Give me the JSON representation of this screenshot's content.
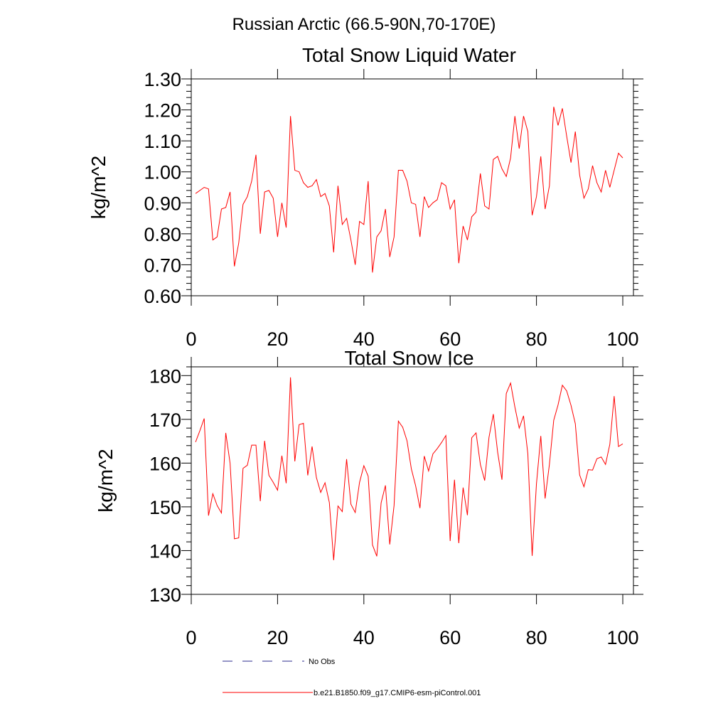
{
  "figure_title": "Russian Arctic (66.5-90N,70-170E)",
  "legend": {
    "items": [
      {
        "label": "No Obs",
        "color": "#2b2b8f",
        "style": "dashed"
      },
      {
        "label": "b.e21.B1850.f09_g17.CMIP6-esm-piControl.001",
        "color": "#ff0000",
        "style": "solid"
      }
    ]
  },
  "chart_data": [
    {
      "type": "line",
      "title": "Total Snow Liquid Water",
      "xlabel": "",
      "ylabel": "kg/m^2",
      "xlim": [
        0,
        100
      ],
      "ylim": [
        0.6,
        1.3
      ],
      "xticks": [
        0,
        20,
        40,
        60,
        80,
        100
      ],
      "xtick_labels": [
        "0",
        "20",
        "40",
        "60",
        "80",
        "100"
      ],
      "yticks": [
        0.6,
        0.7,
        0.8,
        0.9,
        1.0,
        1.1,
        1.2,
        1.3
      ],
      "ytick_labels": [
        "0.60",
        "0.70",
        "0.80",
        "0.90",
        "1.00",
        "1.10",
        "1.20",
        "1.30"
      ],
      "series": [
        {
          "name": "b.e21.B1850.f09_g17.CMIP6-esm-piControl.001",
          "color": "#ff0000",
          "x": [
            1,
            2,
            3,
            4,
            5,
            6,
            7,
            8,
            9,
            10,
            11,
            12,
            13,
            14,
            15,
            16,
            17,
            18,
            19,
            20,
            21,
            22,
            23,
            24,
            25,
            26,
            27,
            28,
            29,
            30,
            31,
            32,
            33,
            34,
            35,
            36,
            37,
            38,
            39,
            40,
            41,
            42,
            43,
            44,
            45,
            46,
            47,
            48,
            49,
            50,
            51,
            52,
            53,
            54,
            55,
            56,
            57,
            58,
            59,
            60,
            61,
            62,
            63,
            64,
            65,
            66,
            67,
            68,
            69,
            70,
            71,
            72,
            73,
            74,
            75,
            76,
            77,
            78,
            79,
            80,
            81,
            82,
            83,
            84,
            85,
            86,
            87,
            88,
            89,
            90,
            91,
            92,
            93,
            94,
            95,
            96,
            97,
            98,
            99,
            100
          ],
          "values": [
            0.93,
            0.94,
            0.95,
            0.945,
            0.78,
            0.79,
            0.88,
            0.885,
            0.935,
            0.695,
            0.77,
            0.895,
            0.92,
            0.97,
            1.055,
            0.8,
            0.935,
            0.94,
            0.915,
            0.79,
            0.9,
            0.82,
            1.18,
            1.005,
            1.0,
            0.965,
            0.95,
            0.955,
            0.975,
            0.92,
            0.93,
            0.89,
            0.74,
            0.955,
            0.83,
            0.85,
            0.78,
            0.7,
            0.84,
            0.83,
            0.97,
            0.675,
            0.79,
            0.81,
            0.88,
            0.725,
            0.79,
            1.005,
            1.005,
            0.97,
            0.9,
            0.895,
            0.79,
            0.92,
            0.885,
            0.9,
            0.91,
            0.965,
            0.955,
            0.88,
            0.91,
            0.705,
            0.825,
            0.78,
            0.855,
            0.87,
            0.995,
            0.89,
            0.88,
            1.04,
            1.05,
            1.01,
            0.985,
            1.045,
            1.18,
            1.075,
            1.18,
            1.13,
            0.86,
            0.92,
            1.05,
            0.88,
            0.955,
            1.21,
            1.15,
            1.205,
            1.115,
            1.03,
            1.13,
            0.99,
            0.915,
            0.945,
            1.02,
            0.965,
            0.935,
            1.005,
            0.95,
            1.005,
            1.06,
            1.045
          ]
        }
      ]
    },
    {
      "type": "line",
      "title": "Total Snow Ice",
      "xlabel": "",
      "ylabel": "kg/m^2",
      "xlim": [
        0,
        100
      ],
      "ylim": [
        130,
        182
      ],
      "xticks": [
        0,
        20,
        40,
        60,
        80,
        100
      ],
      "xtick_labels": [
        "0",
        "20",
        "40",
        "60",
        "80",
        "100"
      ],
      "yticks": [
        130,
        140,
        150,
        160,
        170,
        180
      ],
      "ytick_labels": [
        "130",
        "140",
        "150",
        "160",
        "170",
        "180"
      ],
      "series": [
        {
          "name": "b.e21.B1850.f09_g17.CMIP6-esm-piControl.001",
          "color": "#ff0000",
          "x": [
            1,
            2,
            3,
            4,
            5,
            6,
            7,
            8,
            9,
            10,
            11,
            12,
            13,
            14,
            15,
            16,
            17,
            18,
            19,
            20,
            21,
            22,
            23,
            24,
            25,
            26,
            27,
            28,
            29,
            30,
            31,
            32,
            33,
            34,
            35,
            36,
            37,
            38,
            39,
            40,
            41,
            42,
            43,
            44,
            45,
            46,
            47,
            48,
            49,
            50,
            51,
            52,
            53,
            54,
            55,
            56,
            57,
            58,
            59,
            60,
            61,
            62,
            63,
            64,
            65,
            66,
            67,
            68,
            69,
            70,
            71,
            72,
            73,
            74,
            75,
            76,
            77,
            78,
            79,
            80,
            81,
            82,
            83,
            84,
            85,
            86,
            87,
            88,
            89,
            90,
            91,
            92,
            93,
            94,
            95,
            96,
            97,
            98,
            99,
            100
          ],
          "values": [
            164.8,
            167.4,
            170.2,
            148.0,
            153.0,
            150.3,
            148.6,
            166.9,
            160.0,
            142.7,
            142.9,
            158.8,
            159.5,
            164.1,
            164.1,
            151.3,
            165.1,
            157.2,
            155.6,
            153.8,
            161.7,
            155.4,
            179.6,
            160.4,
            168.8,
            169.1,
            157.2,
            163.8,
            156.7,
            153.3,
            155.5,
            151.0,
            137.8,
            150.2,
            148.9,
            160.9,
            150.6,
            148.7,
            155.6,
            159.4,
            157.0,
            141.3,
            138.7,
            150.9,
            154.9,
            141.4,
            150.3,
            169.6,
            168.2,
            165.1,
            158.7,
            154.8,
            149.7,
            161.6,
            158.2,
            162.1,
            163.3,
            164.7,
            166.3,
            142.2,
            156.2,
            141.7,
            154.4,
            148.1,
            165.8,
            166.9,
            159.7,
            156.0,
            165.9,
            171.2,
            162.5,
            156.2,
            175.9,
            178.3,
            172.8,
            168.0,
            170.8,
            162.1,
            138.8,
            155.3,
            166.2,
            151.9,
            159.7,
            169.8,
            173.3,
            177.8,
            176.5,
            173.2,
            169.0,
            157.3,
            154.6,
            158.5,
            158.4,
            161.0,
            161.4,
            159.7,
            164.3,
            175.3,
            163.8,
            164.4
          ]
        }
      ]
    }
  ]
}
